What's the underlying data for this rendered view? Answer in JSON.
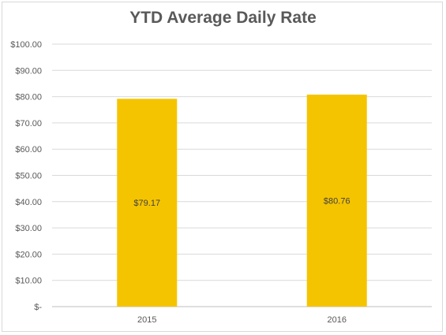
{
  "chart_data": {
    "type": "bar",
    "title": "YTD Average Daily Rate",
    "categories": [
      "2015",
      "2016"
    ],
    "values": [
      79.17,
      80.76
    ],
    "data_labels": [
      "$79.17",
      "$80.76"
    ],
    "ylim": [
      0,
      100
    ],
    "y_ticks": [
      {
        "value": 0,
        "label": "$-"
      },
      {
        "value": 10,
        "label": "$10.00"
      },
      {
        "value": 20,
        "label": "$20.00"
      },
      {
        "value": 30,
        "label": "$30.00"
      },
      {
        "value": 40,
        "label": "$40.00"
      },
      {
        "value": 50,
        "label": "$50.00"
      },
      {
        "value": 60,
        "label": "$60.00"
      },
      {
        "value": 70,
        "label": "$70.00"
      },
      {
        "value": 80,
        "label": "$80.00"
      },
      {
        "value": 90,
        "label": "$90.00"
      },
      {
        "value": 100,
        "label": "$100.00"
      }
    ],
    "bar_color": "#f5c400",
    "grid": true,
    "legend": "none"
  }
}
